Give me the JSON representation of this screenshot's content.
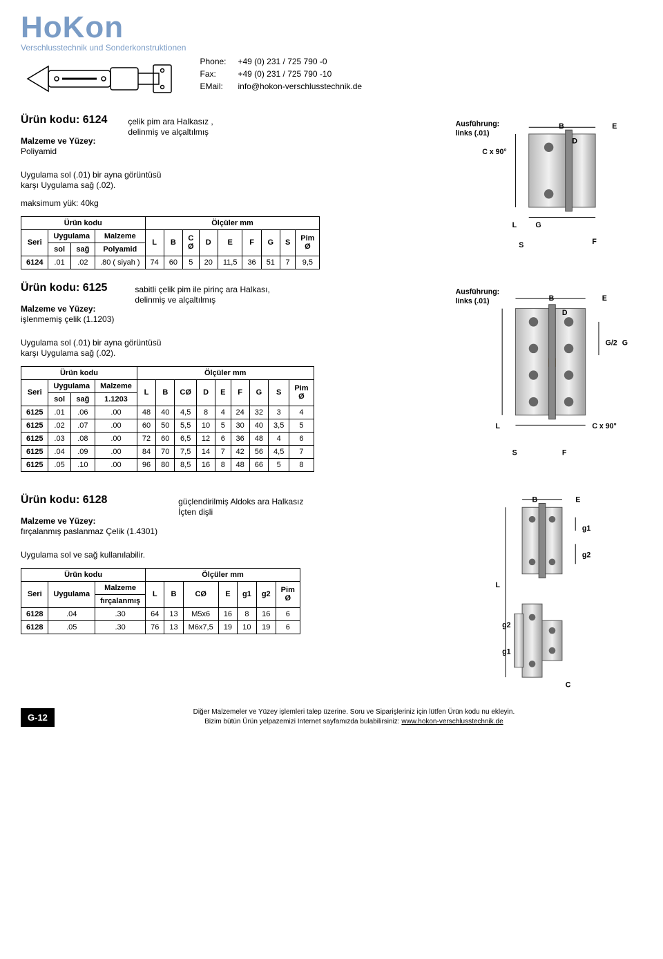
{
  "header": {
    "logo_text": "HoKon",
    "logo_sub": "Verschlusstechnik und Sonderkonstruktionen",
    "phone_label": "Phone:",
    "phone": "+49 (0) 231 / 725 790 -0",
    "fax_label": "Fax:",
    "fax": "+49 (0) 231 / 725 790 -10",
    "email_label": "EMail:",
    "email": "info@hokon-verschlusstechnik.de"
  },
  "p6124": {
    "title": "Ürün kodu: 6124",
    "desc": "çelik pim ara Halkasız ,\ndelinmiş ve alçaltılmış",
    "mat_label": "Malzeme ve Yüzey:",
    "mat": "Poliyamid",
    "app": "Uygulama sol (.01) bir ayna görüntüsü\nkarşı Uygulama sağ (.02).",
    "load": "maksimum yük: 40kg",
    "table": {
      "group1": "Ürün kodu",
      "group2": "Ölçüler mm",
      "h_seri": "Seri",
      "h_uyg": "Uygulama",
      "h_mal": "Malzeme",
      "h_sol": "sol",
      "h_sag": "sağ",
      "h_poly": "Polyamid",
      "h_L": "L",
      "h_B": "B",
      "h_CØ": "C\nØ",
      "h_D": "D",
      "h_E": "E",
      "h_F": "F",
      "h_G": "G",
      "h_S": "S",
      "h_Pim": "Pim\nØ",
      "rows": [
        [
          "6124",
          ".01",
          ".02",
          ".80 ( siyah )",
          "74",
          "60",
          "5",
          "20",
          "11,5",
          "36",
          "51",
          "7",
          "9,5"
        ]
      ]
    },
    "diagram": {
      "title": "Ausführung:\nlinks (.01)",
      "letters": {
        "B": "B",
        "E": "E",
        "D": "D",
        "C": "C x 90°",
        "L": "L",
        "G": "G",
        "F": "F",
        "S": "S"
      }
    }
  },
  "p6125": {
    "title": "Ürün kodu: 6125",
    "desc": "sabitli çelik pim ile pirinç ara Halkası,\ndelinmiş ve alçaltılmış",
    "mat_label": "Malzeme ve Yüzey:",
    "mat": "işlenmemiş çelik (1.1203)",
    "app": "Uygulama sol (.01) bir ayna görüntüsü\nkarşı Uygulama sağ (.02).",
    "table": {
      "group1": "Ürün kodu",
      "group2": "Ölçüler mm",
      "h_seri": "Seri",
      "h_uyg": "Uygulama",
      "h_mal": "Malzeme",
      "h_sol": "sol",
      "h_sag": "sağ",
      "h_1203": "1.1203",
      "h_L": "L",
      "h_B": "B",
      "h_CØ": "CØ",
      "h_D": "D",
      "h_E": "E",
      "h_F": "F",
      "h_G": "G",
      "h_S": "S",
      "h_Pim": "Pim\nØ",
      "rows": [
        [
          "6125",
          ".01",
          ".06",
          ".00",
          "48",
          "40",
          "4,5",
          "8",
          "4",
          "24",
          "32",
          "3",
          "4"
        ],
        [
          "6125",
          ".02",
          ".07",
          ".00",
          "60",
          "50",
          "5,5",
          "10",
          "5",
          "30",
          "40",
          "3,5",
          "5"
        ],
        [
          "6125",
          ".03",
          ".08",
          ".00",
          "72",
          "60",
          "6,5",
          "12",
          "6",
          "36",
          "48",
          "4",
          "6"
        ],
        [
          "6125",
          ".04",
          ".09",
          ".00",
          "84",
          "70",
          "7,5",
          "14",
          "7",
          "42",
          "56",
          "4,5",
          "7"
        ],
        [
          "6125",
          ".05",
          ".10",
          ".00",
          "96",
          "80",
          "8,5",
          "16",
          "8",
          "48",
          "66",
          "5",
          "8"
        ]
      ]
    },
    "diagram": {
      "title": "Ausführung:\nlinks (.01)",
      "letters": {
        "B": "B",
        "E": "E",
        "D": "D",
        "G2": "G/2",
        "G": "G",
        "L": "L",
        "C": "C x 90°",
        "F": "F",
        "S": "S"
      }
    }
  },
  "p6128": {
    "title": "Ürün kodu: 6128",
    "desc": "güçlendirilmiş Aldoks ara Halkasız\nİçten dişli",
    "mat_label": "Malzeme ve Yüzey:",
    "mat": "fırçalanmış paslanmaz Çelik (1.4301)",
    "app": "Uygulama sol ve sağ kullanılabilir.",
    "table": {
      "group1": "Ürün kodu",
      "group2": "Ölçüler mm",
      "h_seri": "Seri",
      "h_uyg": "Uygulama",
      "h_mal": "Malzeme",
      "h_firc": "fırçalanmış",
      "h_L": "L",
      "h_B": "B",
      "h_CØ": "CØ",
      "h_E": "E",
      "h_g1": "g1",
      "h_g2": "g2",
      "h_Pim": "Pim\nØ",
      "rows": [
        [
          "6128",
          ".04",
          ".30",
          "64",
          "13",
          "M5x6",
          "16",
          "8",
          "16",
          "6"
        ],
        [
          "6128",
          ".05",
          ".30",
          "76",
          "13",
          "M6x7,5",
          "19",
          "10",
          "19",
          "6"
        ]
      ]
    },
    "diagram": {
      "letters": {
        "B": "B",
        "E": "E",
        "g1t": "g1",
        "g2t": "g2",
        "L": "L",
        "g2b": "g2",
        "g1b": "g1",
        "C": "C"
      }
    }
  },
  "footer": {
    "tag": "G-12",
    "line1": "Diğer Malzemeler ve Yüzey işlemleri talep üzerine. Soru ve Siparişleriniz için lütfen Ürün kodu nu ekleyin.",
    "line2_pre": "Bizim bütün Ürün yelpazemizi Internet sayfamızda bulabilirsiniz: ",
    "url": "www.hokon-verschlusstechnik.de"
  }
}
